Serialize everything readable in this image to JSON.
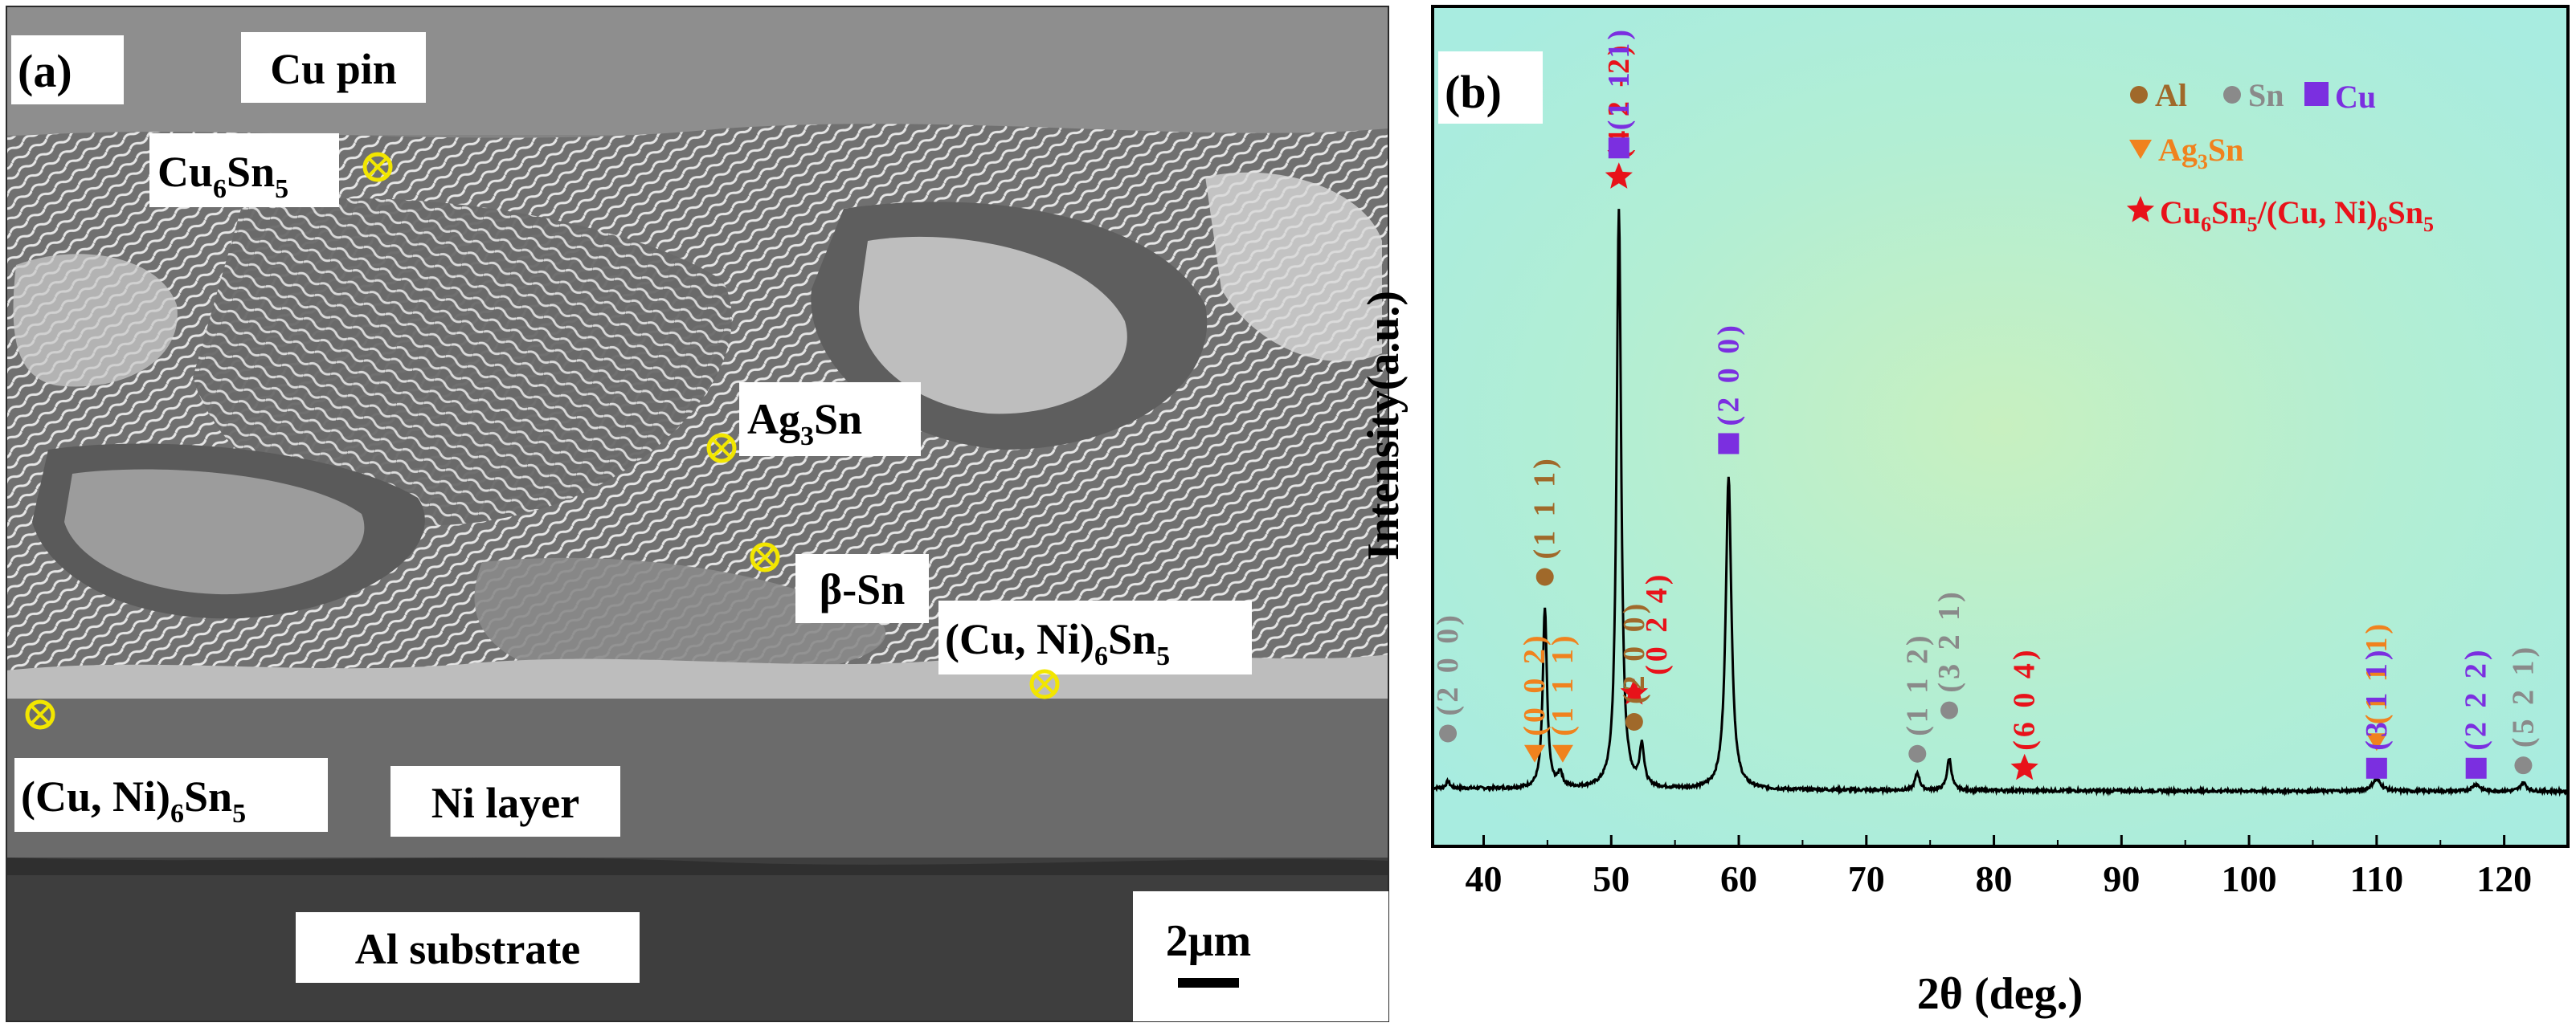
{
  "panel_a": {
    "tag": "(a)",
    "labels": {
      "cu_pin": "Cu pin",
      "cu6sn5_base": "Cu",
      "cu6sn5_s1": "6",
      "cu6sn5_mid": "Sn",
      "cu6sn5_s2": "5",
      "ag3sn_base": "Ag",
      "ag3sn_s1": "3",
      "ag3sn_mid": "Sn",
      "beta_sn": "β-Sn",
      "cuni_base": "(Cu, Ni)",
      "cuni_s1": "6",
      "cuni_mid": "Sn",
      "cuni_s2": "5",
      "ni_layer": "Ni layer",
      "al_substrate": "Al substrate",
      "scale_bar": "2μm"
    },
    "colors": {
      "marker": "#f2e600",
      "label_bg": "#ffffff"
    }
  },
  "panel_b": {
    "tag": "(b)",
    "legend": {
      "al": "Al",
      "sn": "Sn",
      "cu": "Cu",
      "ag3sn_base": "Ag",
      "ag3sn_sub": "3",
      "ag3sn_mid": "Sn",
      "imc_a": "Cu",
      "imc_a1": "6",
      "imc_a2": "Sn",
      "imc_a3": "5",
      "imc_b": "/(Cu, Ni)",
      "imc_b1": "6",
      "imc_b2": "Sn",
      "imc_b3": "5"
    },
    "colors": {
      "al": "#a0692a",
      "sn": "#8a8a8a",
      "cu": "#7b2fe0",
      "ag3sn": "#f0821e",
      "imc": "#e8121a",
      "bg_edge": "#a8ece0",
      "bg_center": "#c8f0c0",
      "line": "#000000"
    }
  },
  "chart_data": {
    "type": "line",
    "title": "",
    "xlabel": "2θ (deg.)",
    "ylabel": "Intensity(a.u.)",
    "xlim": [
      36,
      125
    ],
    "xticks": [
      40,
      50,
      60,
      70,
      80,
      90,
      100,
      110,
      120
    ],
    "y_unit": "arbitrary (baseline = 0, tallest peak = 100)",
    "peaks": [
      {
        "x": 37.2,
        "y": 1.2,
        "w": 0.25
      },
      {
        "x": 44.8,
        "y": 31,
        "w": 0.28
      },
      {
        "x": 46.0,
        "y": 2.5,
        "w": 0.3
      },
      {
        "x": 50.6,
        "y": 100,
        "w": 0.3
      },
      {
        "x": 52.4,
        "y": 7,
        "w": 0.3
      },
      {
        "x": 59.2,
        "y": 54,
        "w": 0.38
      },
      {
        "x": 74.0,
        "y": 3,
        "w": 0.3
      },
      {
        "x": 76.5,
        "y": 5.5,
        "w": 0.3
      },
      {
        "x": 110.0,
        "y": 2,
        "w": 0.6
      },
      {
        "x": 117.8,
        "y": 1.2,
        "w": 0.5
      },
      {
        "x": 121.5,
        "y": 1.5,
        "w": 0.4
      }
    ],
    "markers": [
      {
        "x": 37.2,
        "y": 7,
        "phase": "sn",
        "hkl": "(2 0 0)"
      },
      {
        "x": 44.8,
        "y": 34,
        "phase": "al",
        "hkl": "(1 1 1)"
      },
      {
        "x": 44.0,
        "y": 3.5,
        "phase": "ag3sn",
        "hkl": "(0 0 2)"
      },
      {
        "x": 46.2,
        "y": 3.5,
        "phase": "ag3sn",
        "hkl": "(1 1 1)"
      },
      {
        "x": 50.6,
        "y": 103,
        "phase": "imc",
        "hkl": "(4 2 -2)"
      },
      {
        "x": 50.6,
        "y": 108,
        "phase": "cu",
        "hkl": "(1 1 1)"
      },
      {
        "x": 51.8,
        "y": 14,
        "phase": "imc",
        "hkl": "(0 2 4)"
      },
      {
        "x": 51.8,
        "y": 9,
        "phase": "al",
        "hkl": "(2 0 0)"
      },
      {
        "x": 59.2,
        "y": 57,
        "phase": "cu",
        "hkl": "(2 0 0)"
      },
      {
        "x": 74.0,
        "y": 3.5,
        "phase": "sn",
        "hkl": "(1 1 2)"
      },
      {
        "x": 76.5,
        "y": 11,
        "phase": "sn",
        "hkl": "(3 2 1)"
      },
      {
        "x": 82.4,
        "y": 1,
        "phase": "imc",
        "hkl": "(6 0 4)"
      },
      {
        "x": 110.0,
        "y": 5.5,
        "phase": "ag3sn",
        "hkl": "(1 1 1)"
      },
      {
        "x": 110.0,
        "y": 1,
        "phase": "cu",
        "hkl": "(3 1 1)"
      },
      {
        "x": 117.8,
        "y": 1,
        "phase": "cu",
        "hkl": "(2 2 2)"
      },
      {
        "x": 121.5,
        "y": 1.5,
        "phase": "sn",
        "hkl": "(5 2 1)"
      }
    ]
  }
}
